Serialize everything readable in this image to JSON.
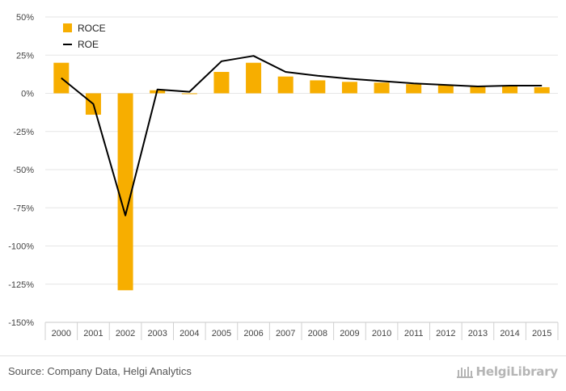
{
  "chart_data": {
    "type": "bar",
    "categories": [
      "2000",
      "2001",
      "2002",
      "2003",
      "2004",
      "2005",
      "2006",
      "2007",
      "2008",
      "2009",
      "2010",
      "2011",
      "2012",
      "2013",
      "2014",
      "2015"
    ],
    "series": [
      {
        "name": "ROCE",
        "kind": "bar",
        "color": "#F7AE00",
        "values": [
          20,
          -14,
          -129,
          2,
          -0.5,
          14,
          20,
          11,
          8.5,
          7.5,
          7,
          6,
          5.5,
          4.5,
          5,
          4
        ]
      },
      {
        "name": "ROE",
        "kind": "line",
        "color": "#000000",
        "values": [
          10,
          -7,
          -80,
          2.5,
          1,
          21,
          24.5,
          14,
          11.5,
          9.5,
          8,
          6.5,
          5.5,
          4.5,
          5,
          5
        ]
      }
    ],
    "yticks": [
      "50%",
      "25%",
      "0%",
      "-25%",
      "-50%",
      "-75%",
      "-100%",
      "-125%",
      "-150%"
    ],
    "ylim": [
      -150,
      50
    ],
    "grid": true,
    "legend_position": "top-left"
  },
  "footer": {
    "source": "Source: Company Data, Helgi Analytics",
    "logo_text": "HelgiLibrary",
    "logo_icon": "library-columns-icon"
  }
}
